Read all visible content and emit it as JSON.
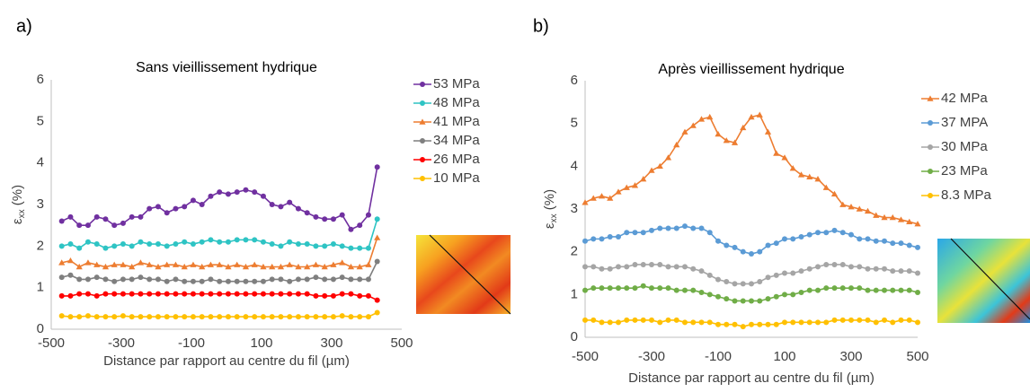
{
  "chart_data": [
    {
      "type": "line",
      "panel_label": "a)",
      "title": "Sans vieillissement hydrique",
      "xlabel": "Distance par rapport au centre du fil (µm)",
      "ylabel": {
        "main": "ε",
        "sub": "xx",
        "rest": " (%)"
      },
      "xlim": [
        -500,
        500
      ],
      "xticks": [
        -500,
        -300,
        -100,
        100,
        300,
        500
      ],
      "ylim": [
        0,
        6
      ],
      "yticks": [
        0,
        1,
        2,
        3,
        4,
        5,
        6
      ],
      "grid": false,
      "legend": "right",
      "x": [
        -470,
        -445,
        -420,
        -395,
        -370,
        -345,
        -320,
        -295,
        -270,
        -245,
        -220,
        -195,
        -170,
        -145,
        -120,
        -95,
        -70,
        -45,
        -20,
        5,
        30,
        55,
        80,
        105,
        130,
        155,
        180,
        205,
        230,
        255,
        280,
        305,
        330,
        355,
        380,
        405,
        430
      ],
      "series": [
        {
          "name": "53 MPa",
          "color": "#7030a0",
          "marker": "circle",
          "values": [
            2.6,
            2.7,
            2.5,
            2.5,
            2.7,
            2.65,
            2.5,
            2.55,
            2.7,
            2.7,
            2.9,
            2.95,
            2.8,
            2.9,
            2.95,
            3.1,
            3.0,
            3.2,
            3.3,
            3.25,
            3.3,
            3.35,
            3.3,
            3.2,
            3.0,
            2.95,
            3.05,
            2.9,
            2.8,
            2.7,
            2.65,
            2.65,
            2.75,
            2.4,
            2.5,
            2.75,
            3.9
          ]
        },
        {
          "name": "48 MPa",
          "color": "#2ec4c4",
          "marker": "circle",
          "values": [
            2.0,
            2.05,
            1.95,
            2.1,
            2.05,
            1.95,
            2.0,
            2.05,
            2.0,
            2.1,
            2.05,
            2.05,
            2.0,
            2.05,
            2.1,
            2.05,
            2.1,
            2.15,
            2.1,
            2.1,
            2.15,
            2.15,
            2.15,
            2.1,
            2.05,
            2.0,
            2.1,
            2.05,
            2.05,
            2.0,
            2.0,
            2.05,
            2.0,
            1.95,
            1.95,
            1.95,
            2.65
          ]
        },
        {
          "name": "41 MPa",
          "color": "#ed7d31",
          "marker": "triangle",
          "values": [
            1.6,
            1.65,
            1.5,
            1.6,
            1.55,
            1.5,
            1.55,
            1.55,
            1.5,
            1.6,
            1.55,
            1.5,
            1.55,
            1.55,
            1.5,
            1.55,
            1.5,
            1.55,
            1.55,
            1.5,
            1.55,
            1.5,
            1.55,
            1.5,
            1.5,
            1.5,
            1.55,
            1.5,
            1.5,
            1.55,
            1.5,
            1.55,
            1.6,
            1.5,
            1.5,
            1.55,
            2.2
          ]
        },
        {
          "name": "34 MPa",
          "color": "#7f7f7f",
          "marker": "circle",
          "values": [
            1.25,
            1.3,
            1.2,
            1.2,
            1.25,
            1.2,
            1.15,
            1.2,
            1.2,
            1.25,
            1.2,
            1.2,
            1.15,
            1.2,
            1.15,
            1.15,
            1.15,
            1.2,
            1.15,
            1.15,
            1.15,
            1.15,
            1.15,
            1.15,
            1.2,
            1.2,
            1.15,
            1.2,
            1.2,
            1.25,
            1.2,
            1.2,
            1.25,
            1.2,
            1.2,
            1.2,
            1.63
          ]
        },
        {
          "name": "26 MPa",
          "color": "#ff0000",
          "marker": "circle",
          "values": [
            0.8,
            0.8,
            0.85,
            0.85,
            0.8,
            0.85,
            0.85,
            0.85,
            0.85,
            0.85,
            0.85,
            0.85,
            0.85,
            0.85,
            0.85,
            0.85,
            0.85,
            0.85,
            0.85,
            0.85,
            0.85,
            0.85,
            0.85,
            0.85,
            0.85,
            0.85,
            0.85,
            0.85,
            0.85,
            0.8,
            0.8,
            0.8,
            0.85,
            0.85,
            0.8,
            0.8,
            0.7
          ]
        },
        {
          "name": "10 MPa",
          "color": "#ffc000",
          "marker": "circle",
          "values": [
            0.32,
            0.3,
            0.3,
            0.32,
            0.3,
            0.3,
            0.3,
            0.32,
            0.3,
            0.3,
            0.3,
            0.3,
            0.3,
            0.3,
            0.3,
            0.3,
            0.3,
            0.3,
            0.3,
            0.3,
            0.3,
            0.3,
            0.3,
            0.3,
            0.3,
            0.3,
            0.3,
            0.3,
            0.3,
            0.3,
            0.3,
            0.3,
            0.32,
            0.3,
            0.3,
            0.3,
            0.4
          ]
        }
      ]
    },
    {
      "type": "line",
      "panel_label": "b)",
      "title": "Après vieillissement hydrique",
      "xlabel": "Distance par rapport au centre du fil (µm)",
      "ylabel": {
        "main": "ε",
        "sub": "xx",
        "rest": " (%)"
      },
      "xlim": [
        -500,
        500
      ],
      "xticks": [
        -500,
        -300,
        -100,
        100,
        300,
        500
      ],
      "ylim": [
        0,
        6
      ],
      "yticks": [
        0,
        1,
        2,
        3,
        4,
        5,
        6
      ],
      "grid": false,
      "legend": "right",
      "x": [
        -500,
        -475,
        -450,
        -425,
        -400,
        -375,
        -350,
        -325,
        -300,
        -275,
        -250,
        -225,
        -200,
        -175,
        -150,
        -125,
        -100,
        -75,
        -50,
        -25,
        0,
        25,
        50,
        75,
        100,
        125,
        150,
        175,
        200,
        225,
        250,
        275,
        300,
        325,
        350,
        375,
        400,
        425,
        450,
        475,
        500
      ],
      "series": [
        {
          "name": "42 MPa",
          "color": "#ed7d31",
          "marker": "triangle",
          "values": [
            3.15,
            3.25,
            3.3,
            3.25,
            3.4,
            3.5,
            3.55,
            3.7,
            3.9,
            4.0,
            4.2,
            4.5,
            4.8,
            4.95,
            5.1,
            5.15,
            4.75,
            4.6,
            4.55,
            4.9,
            5.15,
            5.2,
            4.8,
            4.3,
            4.2,
            3.95,
            3.8,
            3.75,
            3.7,
            3.5,
            3.35,
            3.1,
            3.05,
            3.0,
            2.95,
            2.85,
            2.8,
            2.8,
            2.75,
            2.7,
            2.65
          ]
        },
        {
          "name": "37 MPA",
          "color": "#5b9bd5",
          "marker": "circle",
          "values": [
            2.25,
            2.3,
            2.3,
            2.35,
            2.35,
            2.45,
            2.45,
            2.45,
            2.5,
            2.55,
            2.55,
            2.55,
            2.6,
            2.55,
            2.55,
            2.45,
            2.25,
            2.15,
            2.1,
            2.0,
            1.95,
            2.0,
            2.15,
            2.2,
            2.3,
            2.3,
            2.35,
            2.4,
            2.45,
            2.45,
            2.5,
            2.45,
            2.4,
            2.3,
            2.3,
            2.25,
            2.25,
            2.2,
            2.2,
            2.15,
            2.1
          ]
        },
        {
          "name": "30 MPa",
          "color": "#a5a5a5",
          "marker": "circle",
          "values": [
            1.65,
            1.65,
            1.6,
            1.6,
            1.65,
            1.65,
            1.7,
            1.7,
            1.7,
            1.7,
            1.65,
            1.65,
            1.65,
            1.6,
            1.55,
            1.45,
            1.35,
            1.3,
            1.25,
            1.25,
            1.25,
            1.3,
            1.4,
            1.45,
            1.5,
            1.5,
            1.55,
            1.6,
            1.65,
            1.7,
            1.7,
            1.7,
            1.65,
            1.65,
            1.6,
            1.6,
            1.6,
            1.55,
            1.55,
            1.55,
            1.5
          ]
        },
        {
          "name": "23 MPa",
          "color": "#70ad47",
          "marker": "circle",
          "values": [
            1.1,
            1.15,
            1.15,
            1.15,
            1.15,
            1.15,
            1.15,
            1.2,
            1.15,
            1.15,
            1.15,
            1.1,
            1.1,
            1.1,
            1.05,
            1.0,
            0.95,
            0.9,
            0.85,
            0.85,
            0.85,
            0.85,
            0.9,
            0.95,
            1.0,
            1.0,
            1.05,
            1.1,
            1.1,
            1.15,
            1.15,
            1.15,
            1.15,
            1.15,
            1.1,
            1.1,
            1.1,
            1.1,
            1.1,
            1.1,
            1.05
          ]
        },
        {
          "name": "8.3 MPa",
          "color": "#ffc000",
          "marker": "circle",
          "values": [
            0.4,
            0.4,
            0.35,
            0.35,
            0.35,
            0.4,
            0.4,
            0.4,
            0.4,
            0.35,
            0.4,
            0.4,
            0.35,
            0.35,
            0.35,
            0.35,
            0.3,
            0.3,
            0.3,
            0.25,
            0.3,
            0.3,
            0.3,
            0.3,
            0.35,
            0.35,
            0.35,
            0.35,
            0.35,
            0.35,
            0.4,
            0.4,
            0.4,
            0.4,
            0.4,
            0.35,
            0.4,
            0.35,
            0.4,
            0.4,
            0.35
          ]
        }
      ]
    }
  ]
}
